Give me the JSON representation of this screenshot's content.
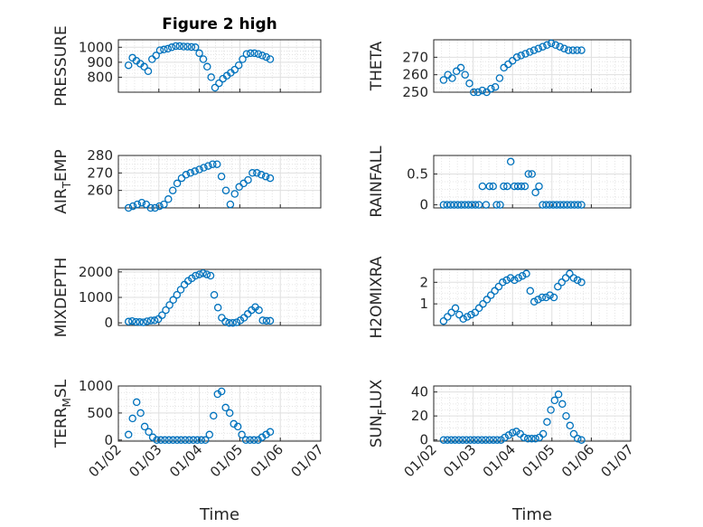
{
  "figure": {
    "title": "Figure 2 high",
    "marker_color": "#0072BD"
  },
  "chart_data": [
    {
      "type": "scatter",
      "title": "Figure 2 high",
      "ylabel": "PRESSURE",
      "xlabel": "",
      "x_domain": [
        "01/02",
        "01/07"
      ],
      "ylim": [
        700,
        1050
      ],
      "yticks": [
        800,
        900,
        1000
      ],
      "xticks": [],
      "grid": "on",
      "minor_grid": "on",
      "x": [
        "01/02",
        "01/02",
        "01/02",
        "01/02",
        "01/02",
        "01/02",
        "01/02",
        "01/02",
        "01/02",
        "01/02",
        "01/02",
        "01/02",
        "01/03",
        "01/03",
        "01/03",
        "01/03",
        "01/04",
        "01/04",
        "01/04",
        "01/04",
        "01/04",
        "01/05",
        "01/05",
        "01/05",
        "01/05",
        "01/05",
        "01/05",
        "01/05",
        "01/05",
        "01/05",
        "01/05",
        "01/05",
        "01/05",
        "01/05",
        "01/06",
        "01/06",
        "01/06"
      ],
      "x_hours": [
        2,
        4,
        6,
        8,
        10,
        12,
        14,
        16,
        18,
        20,
        22,
        23,
        6,
        18,
        12,
        20,
        12,
        12,
        18,
        21,
        23,
        2,
        3,
        4,
        5,
        6,
        8,
        10,
        14,
        17,
        19,
        21,
        23,
        0,
        0,
        2,
        4
      ],
      "values": [
        880,
        930,
        910,
        890,
        870,
        840,
        920,
        945,
        980,
        985,
        990,
        1000,
        1008,
        1008,
        1005,
        1004,
        1002,
        1000,
        960,
        920,
        870,
        800,
        730,
        760,
        790,
        810,
        830,
        850,
        880,
        920,
        955,
        960,
        960,
        955,
        945,
        935,
        920
      ]
    },
    {
      "type": "scatter",
      "title": "",
      "ylabel": "THETA",
      "xlabel": "",
      "x_domain": [
        "01/02",
        "01/07"
      ],
      "ylim": [
        250,
        280
      ],
      "yticks": [
        250,
        260,
        270
      ],
      "xticks": [],
      "grid": "on",
      "minor_grid": "on",
      "values": [
        257,
        260,
        258,
        262,
        264,
        260,
        255,
        250,
        250,
        251,
        250,
        252,
        253,
        258,
        264,
        266,
        268,
        270,
        271,
        272,
        273,
        274,
        275,
        276,
        277,
        278,
        277,
        276,
        275,
        274,
        274,
        274,
        274
      ]
    },
    {
      "type": "scatter",
      "title": "",
      "ylabel": "AIR_TEMP",
      "xlabel": "",
      "x_domain": [
        "01/02",
        "01/07"
      ],
      "ylim": [
        250,
        280
      ],
      "yticks": [
        260,
        270,
        280
      ],
      "xticks": [],
      "grid": "on",
      "minor_grid": "on",
      "values": [
        250,
        251,
        252,
        253,
        252,
        250,
        250,
        251,
        252,
        255,
        260,
        264,
        267,
        269,
        270,
        271,
        272,
        273,
        274,
        275,
        275,
        268,
        260,
        252,
        258,
        262,
        264,
        266,
        270,
        270,
        269,
        268,
        267
      ]
    },
    {
      "type": "scatter",
      "title": "",
      "ylabel": "RAINFALL",
      "xlabel": "",
      "x_domain": [
        "01/02",
        "01/07"
      ],
      "ylim": [
        -0.05,
        0.8
      ],
      "yticks": [
        0,
        0.5
      ],
      "xticks": [],
      "grid": "on",
      "minor_grid": "on",
      "values": [
        0,
        0,
        0,
        0,
        0,
        0,
        0,
        0,
        0,
        0,
        0,
        0.3,
        0,
        0.3,
        0.3,
        0,
        0,
        0.3,
        0.3,
        0.7,
        0.3,
        0.3,
        0.3,
        0.3,
        0.5,
        0.5,
        0.2,
        0.3,
        0,
        0,
        0,
        0,
        0,
        0,
        0,
        0,
        0,
        0,
        0,
        0
      ]
    },
    {
      "type": "scatter",
      "title": "",
      "ylabel": "MIXDEPTH",
      "xlabel": "",
      "x_domain": [
        "01/02",
        "01/07"
      ],
      "ylim": [
        -100,
        2100
      ],
      "yticks": [
        0,
        1000,
        2000
      ],
      "xticks": [],
      "grid": "on",
      "minor_grid": "on",
      "values": [
        50,
        70,
        40,
        30,
        20,
        60,
        90,
        100,
        150,
        300,
        500,
        700,
        900,
        1100,
        1300,
        1500,
        1650,
        1750,
        1850,
        1900,
        1950,
        1900,
        1850,
        1100,
        600,
        200,
        50,
        0,
        0,
        20,
        100,
        200,
        350,
        500,
        620,
        500,
        100,
        80,
        80
      ]
    },
    {
      "type": "scatter",
      "title": "",
      "ylabel": "H2OMIXRA",
      "xlabel": "",
      "x_domain": [
        "01/02",
        "01/07"
      ],
      "ylim": [
        0,
        2.6
      ],
      "yticks": [
        1,
        2
      ],
      "xticks": [],
      "grid": "on",
      "minor_grid": "on",
      "values": [
        0.2,
        0.4,
        0.6,
        0.8,
        0.5,
        0.3,
        0.4,
        0.5,
        0.6,
        0.8,
        1.0,
        1.2,
        1.4,
        1.6,
        1.8,
        2.0,
        2.1,
        2.2,
        2.1,
        2.2,
        2.3,
        2.4,
        1.6,
        1.1,
        1.2,
        1.3,
        1.3,
        1.4,
        1.3,
        1.8,
        2.0,
        2.2,
        2.4,
        2.2,
        2.1,
        2.0
      ]
    },
    {
      "type": "scatter",
      "title": "",
      "ylabel": "TERR_MSL",
      "xlabel": "Time",
      "x_domain": [
        "01/02",
        "01/07"
      ],
      "ylim": [
        -20,
        1000
      ],
      "yticks": [
        0,
        500,
        1000
      ],
      "xticks": [
        "01/02",
        "01/03",
        "01/04",
        "01/05",
        "01/06",
        "01/07"
      ],
      "grid": "on",
      "minor_grid": "on",
      "values": [
        100,
        400,
        700,
        500,
        250,
        150,
        50,
        0,
        0,
        0,
        0,
        0,
        0,
        0,
        0,
        0,
        0,
        0,
        0,
        0,
        100,
        450,
        850,
        900,
        600,
        500,
        300,
        250,
        100,
        0,
        0,
        0,
        0,
        50,
        100,
        150
      ]
    },
    {
      "type": "scatter",
      "title": "",
      "ylabel": "SUN_FLUX",
      "xlabel": "Time",
      "x_domain": [
        "01/02",
        "01/07"
      ],
      "ylim": [
        -1,
        45
      ],
      "yticks": [
        0,
        20,
        40
      ],
      "xticks": [
        "01/02",
        "01/03",
        "01/04",
        "01/05",
        "01/06",
        "01/07"
      ],
      "grid": "on",
      "minor_grid": "on",
      "values": [
        0,
        0,
        0,
        0,
        0,
        0,
        0,
        0,
        0,
        0,
        0,
        0,
        0,
        0,
        0,
        0,
        2,
        4,
        6,
        7,
        5,
        2,
        1,
        1,
        1,
        2,
        5,
        15,
        25,
        33,
        38,
        30,
        20,
        12,
        5,
        1,
        0
      ]
    }
  ]
}
